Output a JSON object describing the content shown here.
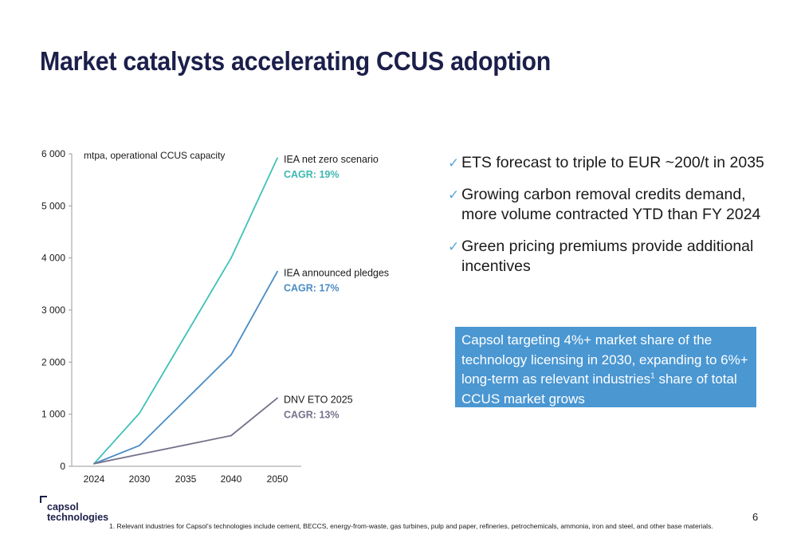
{
  "page": {
    "title": "Market catalysts accelerating CCUS adoption",
    "page_number": "6",
    "footnote": "1. Relevant industries for Capsol’s technologies include cement, BECCS, energy-from-waste, gas turbines, pulp and paper, refineries, petrochemicals, ammonia, iron and steel, and other base materials.",
    "logo": {
      "line1": "capsol",
      "line2": "technologies"
    }
  },
  "bullets": [
    {
      "check": "✓",
      "text": "ETS forecast to triple to EUR ~200/t in 2035"
    },
    {
      "check": "✓",
      "text": "Growing carbon removal credits demand, more volume contracted YTD than FY 2024"
    },
    {
      "check": "✓",
      "text": "Green pricing premiums provide additional incentives"
    }
  ],
  "callout": {
    "text_before": "Capsol targeting 4%+ market share of the technology licensing in 2030, expanding to 6%+ long-term as relevant industries",
    "superscript": "1",
    "text_after": " share of total CCUS market grows",
    "color": "#4a97d2"
  },
  "chart_data": {
    "type": "line",
    "title": "mtpa, operational CCUS capacity",
    "xlabel": "",
    "ylabel": "",
    "categories": [
      "2024",
      "2030",
      "2035",
      "2040",
      "2050"
    ],
    "x": [
      2024,
      2030,
      2035,
      2040,
      2050
    ],
    "ylim": [
      0,
      6000
    ],
    "yticks": [
      0,
      1000,
      2000,
      3000,
      4000,
      5000,
      6000
    ],
    "ytick_labels": [
      "0",
      "1 000",
      "2 000",
      "3 000",
      "4 000",
      "5 000",
      "6 000"
    ],
    "grid": false,
    "series": [
      {
        "name": "IEA net zero scenario",
        "cagr": "CAGR: 19%",
        "color": "#3fc1b8",
        "label_color": "#3fb8b1",
        "x": [
          2024,
          2030,
          2040,
          2050
        ],
        "values": [
          50,
          1020,
          4000,
          5920
        ]
      },
      {
        "name": "IEA announced pledges",
        "cagr": "CAGR: 17%",
        "color": "#4a8cc4",
        "label_color": "#4a8cc4",
        "x": [
          2024,
          2030,
          2040,
          2050
        ],
        "values": [
          50,
          400,
          2140,
          3740
        ]
      },
      {
        "name": "DNV ETO 2025",
        "cagr": "CAGR: 13%",
        "color": "#75718a",
        "label_color": "#75718a",
        "x": [
          2024,
          2030,
          2040,
          2050
        ],
        "values": [
          50,
          230,
          590,
          1310
        ]
      }
    ]
  }
}
